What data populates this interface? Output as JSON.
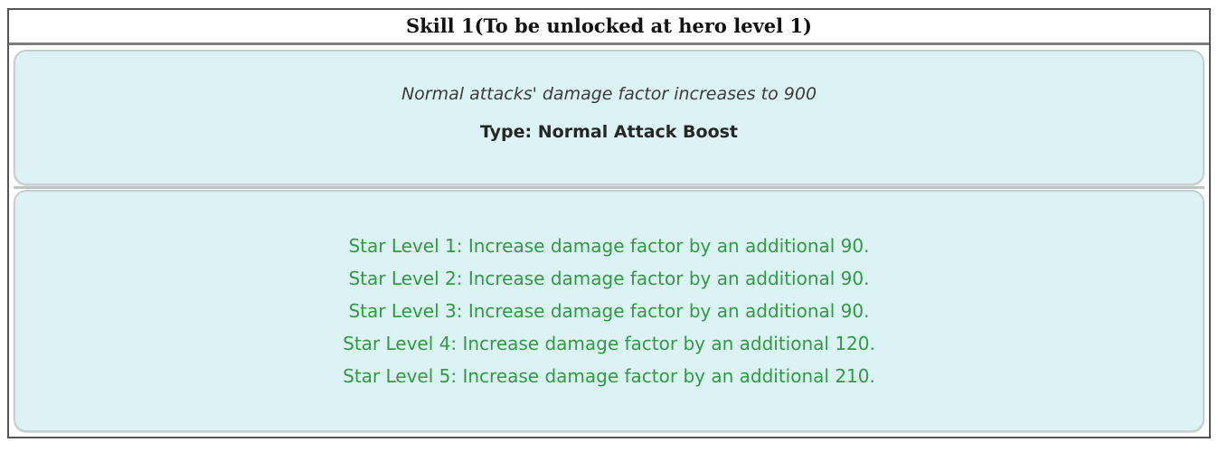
{
  "window": {
    "title": "Skill 1(To be unlocked at hero level 1)"
  },
  "skill": {
    "description": "Normal attacks' damage factor increases to 900",
    "type": "Type: Normal Attack Boost"
  },
  "star_levels": [
    "Star Level 1: Increase damage factor by an additional 90.",
    "Star Level 2: Increase damage factor by an additional 90.",
    "Star Level 3: Increase damage factor by an additional 90.",
    "Star Level 4: Increase damage factor by an additional 120.",
    "Star Level 5: Increase damage factor by an additional 210."
  ],
  "colors": {
    "panel_background": "#dbf3f5",
    "star_text": "#2f9b40",
    "outer_border": "#565656",
    "panel_border": "#c6cfcf",
    "divider": "#bdc6c6",
    "header_text": "#111111",
    "description_text": "#3b3b3b"
  }
}
